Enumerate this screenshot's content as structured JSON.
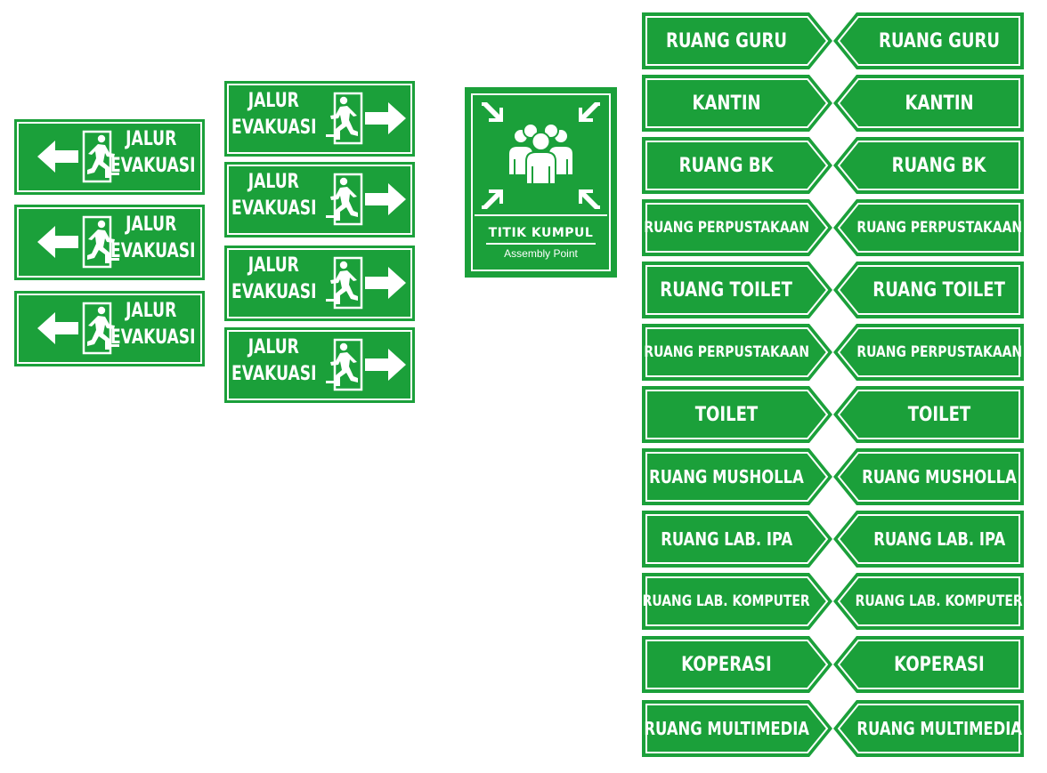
{
  "colors": {
    "sign_green": "#1ba03a",
    "sign_white": "#ffffff"
  },
  "evacuation_signs_left": {
    "direction": "left",
    "icons": [
      "arrow-left-icon",
      "running-man-exit-icon"
    ],
    "items": [
      {
        "line1": "JALUR",
        "line2": "EVAKUASI"
      },
      {
        "line1": "JALUR",
        "line2": "EVAKUASI"
      },
      {
        "line1": "JALUR",
        "line2": "EVAKUASI"
      }
    ]
  },
  "evacuation_signs_right": {
    "direction": "right",
    "icons": [
      "running-man-exit-icon",
      "arrow-right-icon"
    ],
    "items": [
      {
        "line1": "JALUR",
        "line2": "EVAKUASI"
      },
      {
        "line1": "JALUR",
        "line2": "EVAKUASI"
      },
      {
        "line1": "JALUR",
        "line2": "EVAKUASI"
      },
      {
        "line1": "JALUR",
        "line2": "EVAKUASI"
      }
    ]
  },
  "assembly_sign": {
    "icon": "assembly-group-icon",
    "title": "TITIK KUMPUL",
    "subtitle": "Assembly Point"
  },
  "room_signs": {
    "left_column_direction": "right",
    "right_column_direction": "left",
    "rows": [
      {
        "left": "RUANG GURU",
        "right": "RUANG GURU"
      },
      {
        "left": "KANTIN",
        "right": "KANTIN"
      },
      {
        "left": "RUANG BK",
        "right": "RUANG BK"
      },
      {
        "left": "RUANG PERPUSTAKAAN",
        "right": "RUANG PERPUSTAKAAN"
      },
      {
        "left": "RUANG TOILET",
        "right": "RUANG TOILET"
      },
      {
        "left": "RUANG PERPUSTAKAAN",
        "right": "RUANG PERPUSTAKAAN"
      },
      {
        "left": "TOILET",
        "right": "TOILET"
      },
      {
        "left": "RUANG MUSHOLLA",
        "right": "RUANG MUSHOLLA"
      },
      {
        "left": "RUANG LAB. IPA",
        "right": "RUANG LAB. IPA"
      },
      {
        "left": "RUANG LAB. KOMPUTER",
        "right": "RUANG LAB. KOMPUTER"
      },
      {
        "left": "KOPERASI",
        "right": "KOPERASI"
      },
      {
        "left": "RUANG MULTIMEDIA",
        "right": "RUANG MULTIMEDIA"
      }
    ]
  }
}
